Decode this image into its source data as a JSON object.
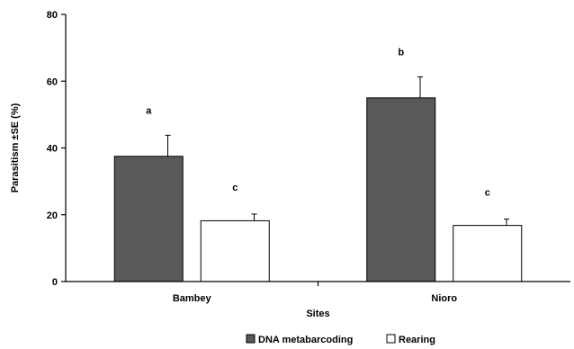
{
  "chart_data": {
    "type": "bar",
    "categories": [
      "Bambey",
      "Nioro"
    ],
    "series": [
      {
        "name": "DNA metabarcoding",
        "values": [
          37.5,
          55.0
        ],
        "errors": [
          6.3,
          6.3
        ],
        "color": "#595959"
      },
      {
        "name": "Rearing",
        "values": [
          18.2,
          16.8
        ],
        "errors": [
          2.0,
          1.9
        ],
        "color": "#ffffff"
      }
    ],
    "significance": [
      [
        "a",
        "c"
      ],
      [
        "b",
        "c"
      ]
    ],
    "xlabel": "Sites",
    "ylabel": "Parasitism ±SE (%)",
    "ylim": [
      0,
      80
    ],
    "yticks": [
      0,
      20,
      40,
      60,
      80
    ],
    "grid": false,
    "legend_position": "bottom-center"
  }
}
